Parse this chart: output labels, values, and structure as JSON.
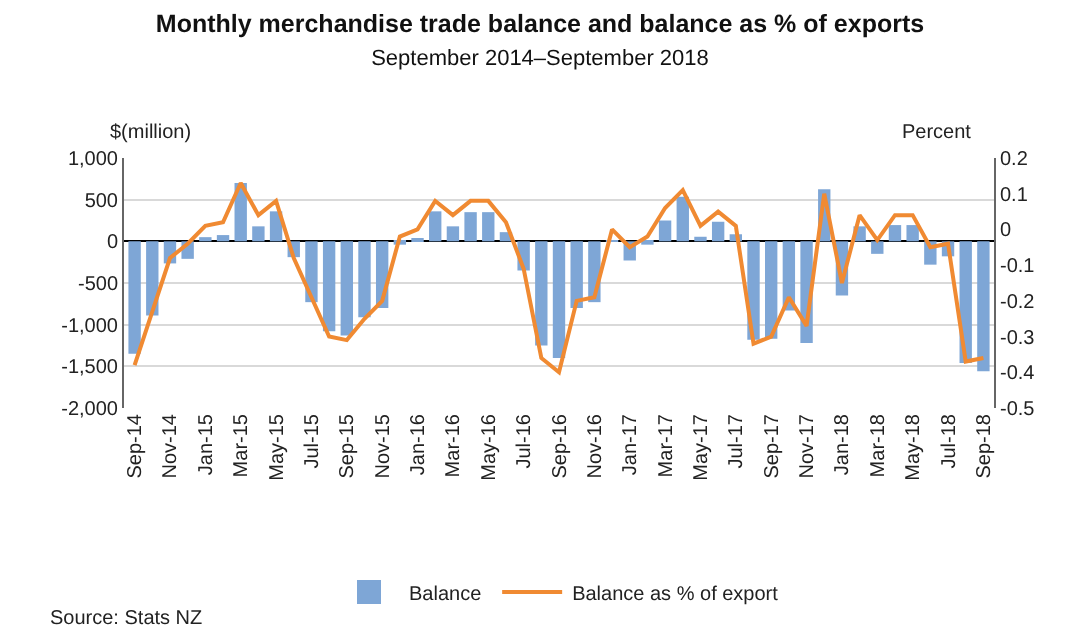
{
  "chart_data": {
    "type": "bar",
    "title": "Monthly merchandise trade balance and balance as % of exports",
    "subtitle": "September 2014–September 2018",
    "ylabel": "$(million)",
    "y2label": "Percent",
    "categories": [
      "Sep-14",
      null,
      "Nov-14",
      null,
      "Jan-15",
      null,
      "Mar-15",
      null,
      "May-15",
      null,
      "Jul-15",
      null,
      "Sep-15",
      null,
      "Nov-15",
      null,
      "Jan-16",
      null,
      "Mar-16",
      null,
      "May-16",
      null,
      "Jul-16",
      null,
      "Sep-16",
      null,
      "Nov-16",
      null,
      "Jan-17",
      null,
      "Mar-17",
      null,
      "May-17",
      null,
      "Jul-17",
      null,
      "Sep-17",
      null,
      "Nov-17",
      null,
      "Jan-18",
      null,
      "Mar-18",
      null,
      "May-18",
      null,
      "Jul-18",
      null,
      "Sep-18"
    ],
    "series": [
      {
        "name": "Balance",
        "color": "#7ea6d6",
        "values": [
          -1350,
          -890,
          -265,
          -210,
          50,
          75,
          700,
          180,
          360,
          -190,
          -730,
          -1080,
          -1130,
          -910,
          -800,
          -40,
          25,
          360,
          180,
          350,
          350,
          110,
          -350,
          -1250,
          -1400,
          -800,
          -730,
          10,
          -230,
          -40,
          250,
          535,
          55,
          235,
          85,
          -1180,
          -1170,
          -830,
          -1220,
          625,
          -650,
          180,
          -150,
          195,
          195,
          -280,
          -180,
          -1460,
          -1560
        ]
      },
      {
        "name": "Balance as % of export",
        "type": "line",
        "axis": "y2",
        "color": "#f08a32",
        "values": [
          -0.38,
          -0.23,
          -0.08,
          -0.04,
          0.01,
          0.02,
          0.13,
          0.04,
          0.08,
          -0.08,
          -0.19,
          -0.3,
          -0.31,
          -0.25,
          -0.2,
          -0.02,
          0,
          0.08,
          0.04,
          0.08,
          0.08,
          0.02,
          -0.11,
          -0.36,
          -0.4,
          -0.2,
          -0.19,
          0,
          -0.05,
          -0.02,
          0.06,
          0.11,
          0.01,
          0.05,
          0.01,
          -0.32,
          -0.3,
          -0.19,
          -0.27,
          0.1,
          -0.15,
          0.04,
          -0.03,
          0.04,
          0.04,
          -0.05,
          -0.04,
          -0.37,
          -0.36
        ]
      }
    ],
    "ylim": [
      -2000,
      1000
    ],
    "yticks": [
      {
        "value": -2000,
        "label": "-2,000"
      },
      {
        "value": -1500,
        "label": "-1,500"
      },
      {
        "value": -1000,
        "label": "-1,000"
      },
      -500,
      0,
      500,
      {
        "value": 1000,
        "label": "1,000"
      }
    ],
    "y2lim": [
      -0.5,
      0.2
    ],
    "y2ticks": [
      -0.5,
      -0.4,
      -0.3,
      -0.2,
      -0.1,
      0,
      0.1,
      0.2
    ],
    "grid": "y",
    "legend": "bottom",
    "marker": "none",
    "line_style": "solid",
    "annotations": [
      "Source: Stats NZ"
    ]
  }
}
